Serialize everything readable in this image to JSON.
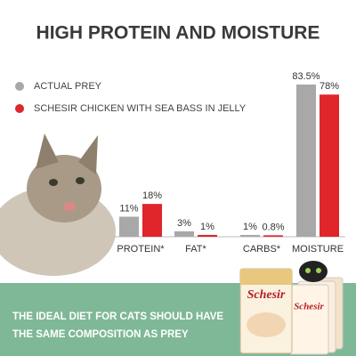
{
  "chart_data": {
    "type": "bar",
    "title": "HIGH PROTEIN AND MOISTURE",
    "categories": [
      "PROTEIN*",
      "FAT*",
      "CARBS*",
      "MOISTURE"
    ],
    "series": [
      {
        "name": "ACTUAL PREY",
        "color": "#a8a8a8",
        "values": [
          11,
          3,
          1,
          83.5
        ],
        "value_labels": [
          "11%",
          "3%",
          "1%",
          "83.5%"
        ]
      },
      {
        "name": "SCHESIR CHICKEN WITH SEA BASS IN JELLY",
        "color": "#e0252b",
        "values": [
          18,
          1,
          0.8,
          78
        ],
        "value_labels": [
          "18%",
          "1%",
          "0.8%",
          "78%"
        ]
      }
    ],
    "footer": [
      "THE IDEAL DIET FOR CATS SHOULD HAVE",
      "THE SAME COMPOSITION AS PREY"
    ],
    "brand": "Schesir"
  }
}
